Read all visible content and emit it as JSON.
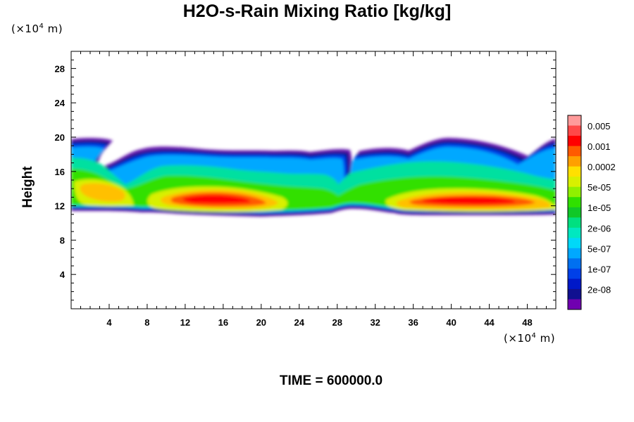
{
  "chart_data": {
    "type": "heatmap",
    "title": "H2O-s-Rain Mixing Ratio [kg/kg]",
    "ylabel": "Height",
    "y_unit": "(×10⁴ m)",
    "x_unit": "(×10⁴ m)",
    "footer": "TIME = 600000.0",
    "xlim": [
      0,
      51
    ],
    "ylim": [
      0,
      30
    ],
    "x_ticks": [
      4,
      8,
      12,
      16,
      20,
      24,
      28,
      32,
      36,
      40,
      44,
      48
    ],
    "y_ticks": [
      4,
      8,
      12,
      16,
      20,
      24,
      28
    ],
    "colorbar": {
      "labels": [
        "0.005",
        "0.001",
        "0.0002",
        "5e-05",
        "1e-05",
        "2e-06",
        "5e-07",
        "1e-07",
        "2e-08"
      ],
      "colors": [
        "#ff9a9a",
        "#ff4848",
        "#ff0000",
        "#ff5a00",
        "#ffa000",
        "#ffe000",
        "#d8f000",
        "#90f000",
        "#30e000",
        "#10c828",
        "#00e080",
        "#00e8c0",
        "#00d8f8",
        "#00a8ff",
        "#0070f0",
        "#0040e8",
        "#0018c8",
        "#101090",
        "#7000b0"
      ]
    },
    "layer": {
      "bottom_height": 11,
      "top_height": 20
    },
    "cores": [
      {
        "x": 4.5,
        "y": 14.0,
        "level": 5e-05
      },
      {
        "x": 14.5,
        "y": 12.8,
        "level": 0.001
      },
      {
        "x": 41.0,
        "y": 12.5,
        "level": 0.001
      }
    ]
  }
}
